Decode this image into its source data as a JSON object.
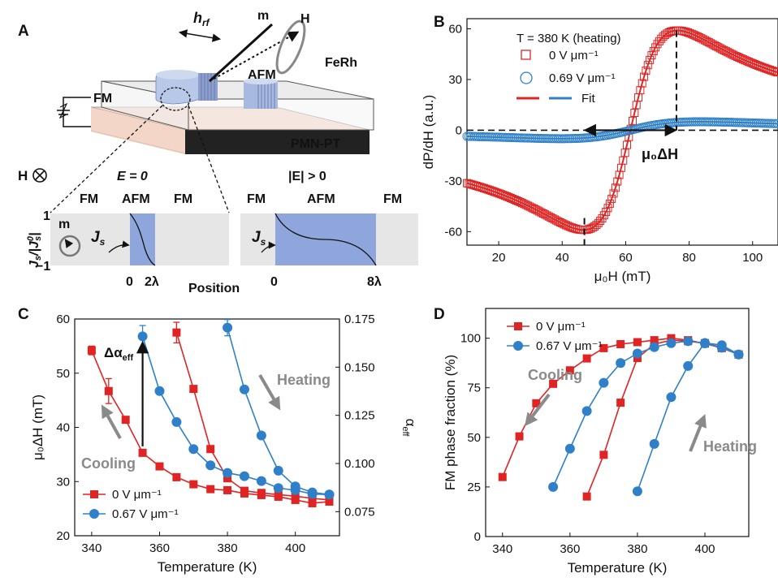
{
  "panels": {
    "A": "A",
    "B": "B",
    "C": "C",
    "D": "D"
  },
  "schematic": {
    "h_rf": "h",
    "h_rf_sub": "rf",
    "m": "m",
    "H": "H",
    "ferh": "FeRh",
    "afm": "AFM",
    "fm": "FM",
    "pmnpt": "PMN-PT",
    "h_into": "H",
    "e_zero": "E = 0",
    "e_nonzero": "|E| > 0",
    "fm_left": "FM",
    "afm_mid": "AFM",
    "fm_right": "FM",
    "ylabel_js": "J",
    "tick_plus1": "1",
    "tick_minus1": "−1",
    "m_small": "m",
    "js_label": "J",
    "x_0_left": "0",
    "x_2lambda": "2λ",
    "position": "Position",
    "x_0_right": "0",
    "x_8lambda": "8λ"
  },
  "panel_b_text": {
    "condition": "T = 380 K (heating)",
    "leg_0v": "0 V μm⁻¹",
    "leg_069v": "0.69 V μm⁻¹",
    "leg_fit": "Fit",
    "delta_label": "μ₀ΔH"
  },
  "panel_c_text": {
    "delta_alpha": "Δα",
    "delta_alpha_sub": "eff",
    "heating": "Heating",
    "cooling": "Cooling"
  },
  "panel_d_text": {
    "cooling": "Cooling",
    "heating": "Heating"
  },
  "colors": {
    "red": "#e02424",
    "blue": "#2f80c9",
    "blue_fill": "#3d8fd6",
    "afm_region": "#8fa6dc",
    "grey_band": "#e6e6e6",
    "arrow_grey": "#8a8a8a",
    "pmn_top": "#f6d9cc"
  },
  "chart_data": [
    {
      "panel": "B",
      "type": "scatter",
      "xlabel": "μ₀H (mT)",
      "ylabel": "dP/dH (a.u.)",
      "xlim": [
        10,
        108
      ],
      "ylim": [
        -68,
        66
      ],
      "xticks": [
        "20",
        "40",
        "60",
        "80",
        "100"
      ],
      "yticks": [
        "60",
        "30",
        "0",
        "-30",
        "-60"
      ],
      "series": [
        {
          "name": "0 V μm⁻¹",
          "color": "#e02424",
          "marker": "square-open",
          "shape": {
            "center": 61.5,
            "halfwidth": 14.8,
            "amplitude": 59,
            "offset": 0
          }
        },
        {
          "name": "0.69 V μm⁻¹",
          "color": "#2f80c9",
          "marker": "circle-open",
          "shape": {
            "center": 61.5,
            "halfwidth": 22,
            "amplitude": 5,
            "offset": 0
          }
        },
        {
          "name": "Fit",
          "type": "line"
        }
      ],
      "annotations": {
        "peak_min_x": 47,
        "peak_max_x": 76
      }
    },
    {
      "panel": "C",
      "type": "line",
      "xlabel": "Temperature (K)",
      "ylabel": "μ₀ΔH (mT)",
      "y2label": "α",
      "y2label_sub": "eff",
      "xlim": [
        335,
        413
      ],
      "ylim": [
        20,
        60
      ],
      "y2lim": [
        0.0625,
        0.175
      ],
      "xticks": [
        "340",
        "360",
        "380",
        "400"
      ],
      "yticks": [
        "20",
        "30",
        "40",
        "50",
        "60"
      ],
      "y2ticks": [
        "0.075",
        "0.100",
        "0.125",
        "0.150",
        "0.175"
      ],
      "series": [
        {
          "name": "0 V μm⁻¹",
          "color": "#e02424",
          "marker": "square",
          "cooling": {
            "x": [
              340,
              345,
              350,
              355,
              360,
              365,
              370,
              375,
              380,
              385,
              390,
              395,
              400,
              405,
              410
            ],
            "y": [
              54.2,
              46.7,
              41.4,
              35.3,
              32.8,
              30.8,
              29.5,
              28.6,
              28.4,
              27.8,
              27.5,
              27.2,
              26.6,
              26.0,
              26.3
            ]
          },
          "heating": {
            "x": [
              365,
              370,
              375,
              380,
              385,
              390,
              395,
              400,
              405,
              410
            ],
            "y": [
              57.5,
              47.1,
              36.0,
              30.6,
              28.3,
              27.9,
              27.6,
              27.3,
              26.9,
              26.6
            ]
          },
          "errors": {
            "x": [
              340,
              345,
              365
            ],
            "err": [
              0.8,
              2.3,
              1.9
            ]
          }
        },
        {
          "name": "0.67 V μm⁻¹",
          "color": "#2f80c9",
          "marker": "circle",
          "cooling": {
            "x": [
              355,
              360,
              365,
              370,
              375,
              380,
              385,
              390,
              395,
              400,
              405,
              410
            ],
            "y": [
              56.8,
              46.7,
              41.0,
              36.0,
              33.0,
              31.6,
              31.0,
              30.1,
              28.8,
              28.4,
              27.7,
              27.6
            ]
          },
          "heating": {
            "x": [
              380,
              385,
              390,
              395,
              400,
              405,
              410
            ],
            "y": [
              58.4,
              47.0,
              38.5,
              32.0,
              29.1,
              28.0,
              27.6
            ]
          },
          "errors": {
            "x": [
              355,
              380
            ],
            "err": [
              2.0,
              1.5
            ]
          }
        }
      ]
    },
    {
      "panel": "D",
      "type": "line",
      "xlabel": "Temperature (K)",
      "ylabel": "FM phase fraction (%)",
      "xlim": [
        335,
        413
      ],
      "ylim": [
        0,
        115
      ],
      "xticks": [
        "340",
        "360",
        "380",
        "400"
      ],
      "yticks": [
        "0",
        "25",
        "50",
        "75",
        "100"
      ],
      "series": [
        {
          "name": "0 V μm⁻¹",
          "color": "#e02424",
          "marker": "square",
          "cooling": {
            "x": [
              340,
              345,
              350,
              355,
              360,
              365,
              370,
              375,
              380,
              385,
              390,
              395,
              400,
              405,
              410
            ],
            "y": [
              30,
              50.5,
              67.2,
              77,
              83.8,
              89.8,
              95,
              97,
              98,
              99,
              100,
              99,
              97.3,
              95,
              91.8
            ]
          },
          "heating": {
            "x": [
              365,
              370,
              375,
              380,
              385,
              390,
              395,
              400,
              405,
              410
            ],
            "y": [
              20.2,
              41.2,
              67.5,
              90,
              97,
              99,
              98.5,
              97.5,
              95.4,
              91.8
            ]
          }
        },
        {
          "name": "0.67 V μm⁻¹",
          "color": "#2f80c9",
          "marker": "circle",
          "cooling": {
            "x": [
              355,
              360,
              365,
              370,
              375,
              380,
              385,
              390,
              395,
              400,
              405,
              410
            ],
            "y": [
              25,
              44.3,
              63.3,
              77.5,
              87.5,
              92.3,
              95.5,
              97.5,
              98.5,
              97.4,
              95.2,
              91.8
            ]
          },
          "heating": {
            "x": [
              380,
              385,
              390,
              395,
              400,
              405,
              410
            ],
            "y": [
              22.8,
              46.7,
              70.3,
              86,
              97.6,
              96.5,
              91.8
            ]
          }
        }
      ]
    }
  ]
}
